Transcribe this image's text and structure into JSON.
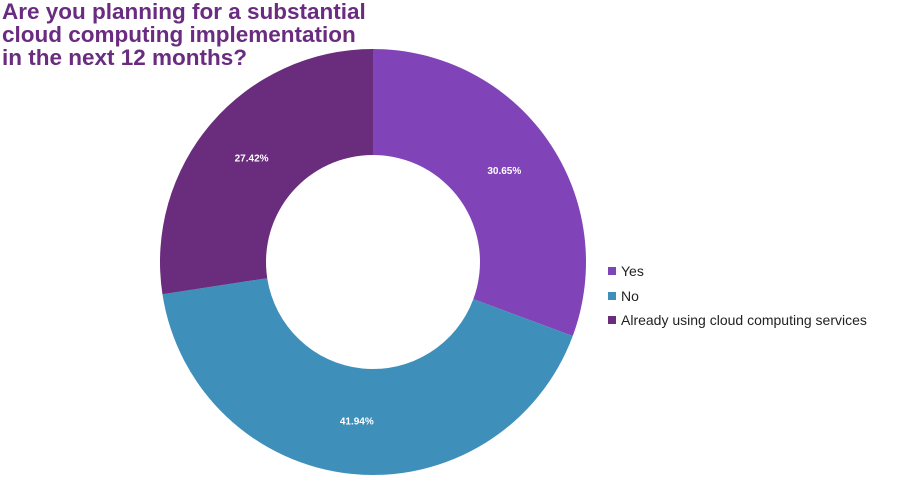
{
  "chart_data": {
    "type": "pie",
    "style": "donut",
    "title_lines": [
      "Are you planning for a substantial",
      "cloud computing implementation",
      "in the next 12 months?"
    ],
    "categories": [
      "Yes",
      "No",
      "Already using cloud computing services"
    ],
    "values": [
      30.65,
      41.94,
      27.42
    ],
    "data_labels": [
      "30.65%",
      "41.94%",
      "27.42%"
    ],
    "colors": [
      "#8044b8",
      "#3f8fbb",
      "#6a2c7c"
    ],
    "legend_position": "right"
  }
}
